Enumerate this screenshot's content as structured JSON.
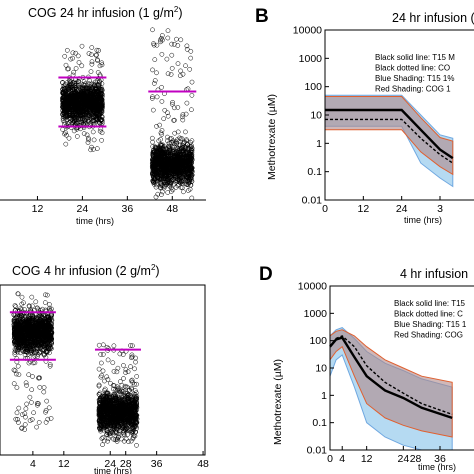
{
  "panels": {
    "A": {
      "title_main": "COG 24 hr infusion (1 g/m",
      "title_sup": "2",
      "title_end": ")",
      "x_ticks": [
        "12",
        "24",
        "36",
        "48"
      ],
      "xlabel": "time (hrs)"
    },
    "B": {
      "letter": "B",
      "title": "24 hr infusion (",
      "ylabel": "Methotrexate (µM)",
      "y_ticks": [
        "10000",
        "1000",
        "100",
        "10",
        "1",
        "0.1",
        "0.01"
      ],
      "x_ticks": [
        "0",
        "12",
        "24",
        "3"
      ],
      "xlabel": "time (hrs)",
      "legend": [
        "Black solid line: T15 M",
        "Black dotted line: CO",
        "Blue Shading: T15 1%",
        "Red Shading: COG 1"
      ]
    },
    "C": {
      "title_main": "COG 4 hr infusion (2 g/m",
      "title_sup": "2",
      "title_end": ")",
      "x_ticks": [
        "4",
        "12",
        "24",
        "28",
        "36",
        "48"
      ],
      "xlabel": "time (hrs)"
    },
    "D": {
      "letter": "D",
      "title": "4 hr infusion",
      "ylabel": "Methotrexate (µM)",
      "y_ticks": [
        "10000",
        "1000",
        "100",
        "10",
        "1",
        "0.1",
        "0.01"
      ],
      "x_ticks": [
        "0",
        "4",
        "12",
        "24",
        "28",
        "36"
      ],
      "xlabel": "time (hrs)",
      "legend": [
        "Black solid line: T15",
        "Black dotted line: C",
        "Blue Shading: T15 1",
        "Red Shading: COG"
      ]
    }
  },
  "colors": {
    "magenta": "#c000c0",
    "blue_band": "#a8d4f0",
    "red_band": "#b08888",
    "red_band_edge": "#e06030",
    "blue_band_edge": "#70a8e0",
    "frame": "#000000"
  },
  "chart_data": [
    {
      "type": "scatter",
      "panel": "A",
      "title": "COG 24 hr infusion (1 g/m2)",
      "xlabel": "time (hrs)",
      "x_ticks": [
        12,
        24,
        36,
        48
      ],
      "clusters": [
        {
          "x": 24,
          "median": 0.55,
          "upper_line": 0.7,
          "lower_line": 0.42,
          "spread": [
            0.28,
            0.88
          ]
        },
        {
          "x": 48,
          "median": 0.2,
          "upper_line": 0.62,
          "spread": [
            0.0,
            0.98
          ]
        }
      ],
      "note": "y axis unlabeled (cropped)"
    },
    {
      "type": "line",
      "panel": "B",
      "title": "24 hr infusion (",
      "ylabel": "Methotrexate (µM)",
      "xlabel": "time (hrs)",
      "yscale": "log",
      "ylim": [
        0.01,
        10000
      ],
      "x_ticks": [
        0,
        12,
        24
      ],
      "series": [
        {
          "x": [
            0,
            24,
            30,
            36,
            40
          ],
          "y": [
            15,
            15,
            3,
            0.6,
            0.3
          ]
        },
        {
          "x": [
            0,
            24,
            30,
            36,
            40
          ],
          "y": [
            7,
            7,
            1.5,
            0.4,
            0.2
          ]
        }
      ],
      "bands": [
        {
          "x": [
            0,
            24,
            30,
            36,
            40
          ],
          "low": [
            4,
            4,
            0.2,
            0.06,
            0.03
          ],
          "high": [
            50,
            50,
            10,
            2,
            1.5
          ]
        },
        {
          "x": [
            0,
            24,
            30,
            36,
            40
          ],
          "low": [
            3,
            3,
            0.5,
            0.15,
            0.08
          ],
          "high": [
            45,
            45,
            8,
            1.6,
            1.2
          ]
        }
      ]
    },
    {
      "type": "scatter",
      "panel": "C",
      "title": "COG 4 hr infusion (2 g/m2)",
      "xlabel": "time (hrs)",
      "x_ticks": [
        4,
        12,
        24,
        28,
        36,
        48
      ],
      "clusters": [
        {
          "x": 4,
          "median": 0.72,
          "upper_line": 0.84,
          "lower_line": 0.56,
          "spread": [
            0.15,
            0.95
          ]
        },
        {
          "x": 26,
          "median": 0.25,
          "upper_line": 0.62,
          "spread": [
            0.05,
            0.65
          ]
        }
      ],
      "note": "y axis unlabeled (cropped)"
    },
    {
      "type": "line",
      "panel": "D",
      "title": "4 hr infusion",
      "ylabel": "Methotrexate (µM)",
      "xlabel": "time (hrs)",
      "yscale": "log",
      "ylim": [
        0.01,
        10000
      ],
      "x_ticks": [
        0,
        4,
        12,
        24,
        28
      ],
      "series": [
        {
          "x": [
            0,
            2,
            4,
            8,
            12,
            18,
            24,
            30,
            40
          ],
          "y": [
            60,
            110,
            130,
            25,
            5,
            1.5,
            0.8,
            0.35,
            0.15
          ]
        },
        {
          "x": [
            0,
            2,
            4,
            8,
            12,
            18,
            24,
            30,
            40
          ],
          "y": [
            60,
            120,
            150,
            60,
            12,
            3,
            1.2,
            0.5,
            0.2
          ]
        }
      ],
      "bands": [
        {
          "x": [
            0,
            2,
            4,
            8,
            12,
            18,
            24,
            30,
            40
          ],
          "low": [
            5,
            20,
            30,
            2,
            0.1,
            0.03,
            0.015,
            0.01,
            0.01
          ],
          "high": [
            150,
            250,
            300,
            120,
            40,
            15,
            8,
            4,
            2
          ]
        },
        {
          "x": [
            0,
            2,
            4,
            8,
            12,
            18,
            24,
            30,
            40
          ],
          "low": [
            20,
            40,
            60,
            5,
            0.5,
            0.15,
            0.08,
            0.05,
            0.03
          ],
          "high": [
            150,
            220,
            250,
            150,
            60,
            20,
            10,
            5,
            3
          ]
        }
      ]
    }
  ]
}
